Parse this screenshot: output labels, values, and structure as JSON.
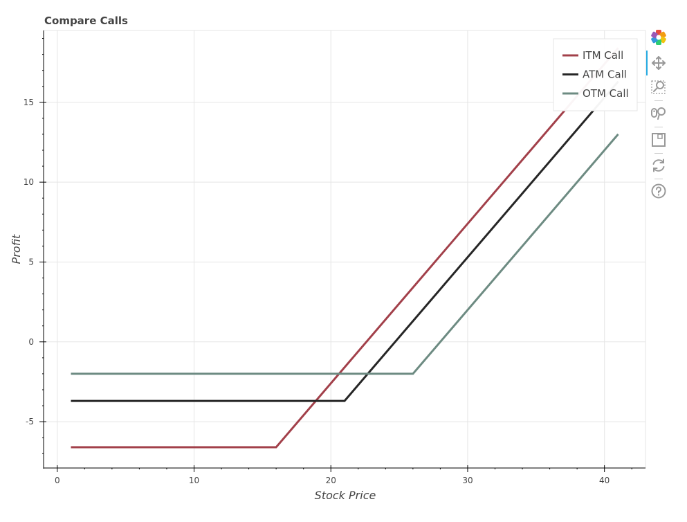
{
  "chart_data": {
    "type": "line",
    "title": "Compare Calls",
    "xlabel": "Stock Price",
    "ylabel": "Profit",
    "xlim": [
      -1,
      43
    ],
    "ylim": [
      -7.9,
      19.5
    ],
    "x_ticks": [
      0,
      10,
      20,
      30,
      40
    ],
    "x_tick_labels": [
      "0",
      "10",
      "20",
      "30",
      "40"
    ],
    "y_ticks": [
      -5,
      0,
      5,
      10,
      15
    ],
    "y_tick_labels": [
      "-5",
      "0",
      "5",
      "10",
      "15"
    ],
    "grid": true,
    "legend_position": "top-right",
    "series": [
      {
        "name": "ITM Call",
        "color": "#a2404a",
        "x": [
          1,
          16,
          41
        ],
        "y": [
          -6.6,
          -6.6,
          18.4
        ]
      },
      {
        "name": "ATM Call",
        "color": "#262626",
        "x": [
          1,
          21,
          41
        ],
        "y": [
          -3.7,
          -3.7,
          16.3
        ]
      },
      {
        "name": "OTM Call",
        "color": "#6d8b82",
        "x": [
          1,
          26,
          41
        ],
        "y": [
          -2.0,
          -2.0,
          13.0
        ]
      }
    ]
  },
  "toolbar": {
    "tools": [
      {
        "name": "bokeh-logo-icon"
      },
      {
        "name": "pan-icon",
        "active": true
      },
      {
        "name": "box-zoom-icon"
      },
      {
        "name": "wheel-zoom-icon"
      },
      {
        "name": "save-icon"
      },
      {
        "name": "reset-icon"
      },
      {
        "name": "help-icon"
      }
    ],
    "accent_color": "#26aae1"
  }
}
